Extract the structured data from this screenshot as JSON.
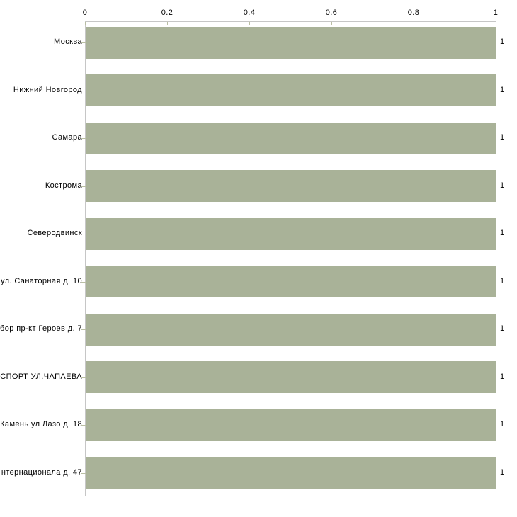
{
  "chart_data": {
    "type": "bar",
    "orientation": "horizontal",
    "title": "",
    "xlabel": "",
    "ylabel": "",
    "xlim": [
      0,
      1
    ],
    "x_tick_labels": [
      "0",
      "0.2",
      "0.4",
      "0.6",
      "0.8",
      "1"
    ],
    "x_tick_values": [
      0,
      0.2,
      0.4,
      0.6,
      0.8,
      1
    ],
    "grid": false,
    "legend": false,
    "categories": [
      "Москва",
      "Нижний Новгород",
      "Самара",
      "Кострома",
      "Северодвинск",
      "ул. Санаторная д. 10",
      "бор пр-кт Героев д. 7",
      "НСПОРТ УЛ.ЧАПАЕВА",
      "Камень ул Лазо д. 18",
      "нтернационала д. 47"
    ],
    "values": [
      1,
      1,
      1,
      1,
      1,
      1,
      1,
      1,
      1,
      1
    ],
    "bar_value_labels": [
      "1",
      "1",
      "1",
      "1",
      "1",
      "1",
      "1",
      "1",
      "1",
      "1"
    ],
    "colors": {
      "bar": "#a9b298",
      "axis_line": "#c6c6c6",
      "tick_mark": "#b9bea3",
      "text": "#000000",
      "background": "#ffffff"
    }
  }
}
